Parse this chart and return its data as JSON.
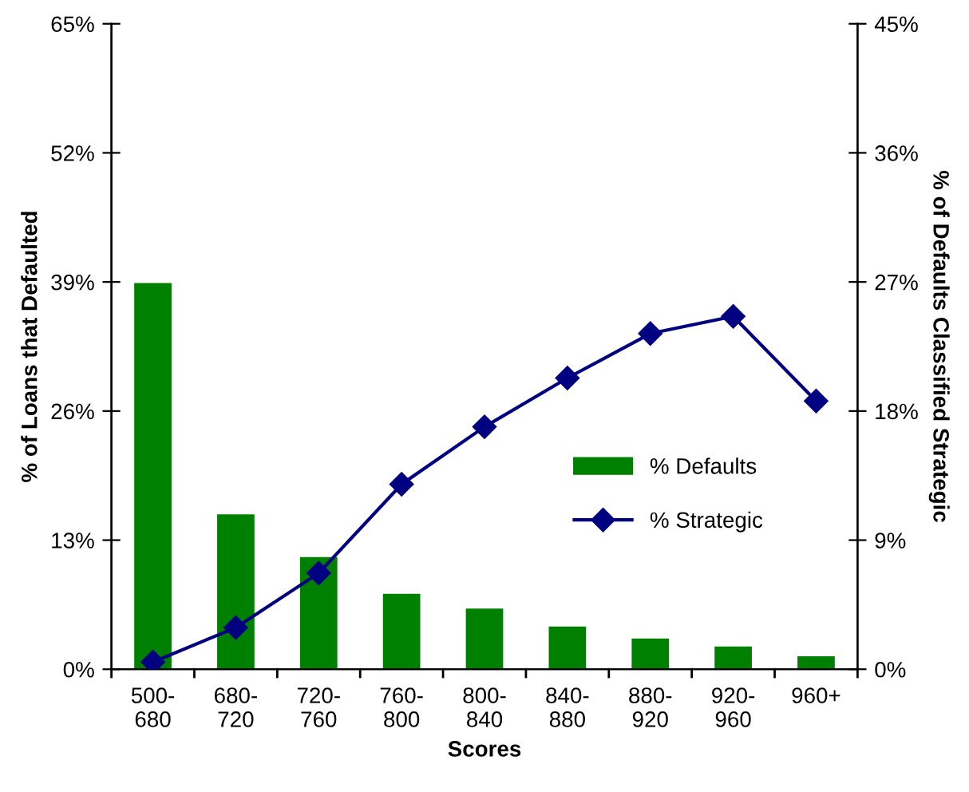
{
  "chart_data": {
    "type": "bar",
    "xlabel": "Scores",
    "ylabel": "% of Loans that Defaulted",
    "y2label": "% of Defaults Classified Strategic",
    "categories": [
      "500-\n680",
      "680-\n720",
      "720-\n760",
      "760-\n800",
      "800-\n840",
      "840-\n880",
      "880-\n920",
      "920-\n960",
      "960+"
    ],
    "series": [
      {
        "name": "% Defaults",
        "color": "#008000",
        "values": [
          38.9,
          15.6,
          11.3,
          7.6,
          6.1,
          4.3,
          3.1,
          2.3,
          1.3
        ]
      },
      {
        "name": "% Strategic",
        "type": "line",
        "axis": "y2",
        "color": "#000080",
        "marker": "diamond",
        "values": [
          0.5,
          2.9,
          6.7,
          12.9,
          16.9,
          20.3,
          23.4,
          24.6,
          18.7
        ]
      }
    ],
    "ylim": [
      0,
      65
    ],
    "yticks": [
      {
        "value": 0,
        "label": "0%"
      },
      {
        "value": 13,
        "label": "13%"
      },
      {
        "value": 26,
        "label": "26%"
      },
      {
        "value": 39,
        "label": "39%"
      },
      {
        "value": 52,
        "label": "52%"
      },
      {
        "value": 65,
        "label": "65%"
      }
    ],
    "y2lim": [
      0,
      45
    ],
    "y2ticks": [
      {
        "value": 0,
        "label": "0%"
      },
      {
        "value": 9,
        "label": "9%"
      },
      {
        "value": 18,
        "label": "18%"
      },
      {
        "value": 27,
        "label": "27%"
      },
      {
        "value": 36,
        "label": "36%"
      },
      {
        "value": 45,
        "label": "45%"
      }
    ],
    "grid": false,
    "legend": "right"
  }
}
